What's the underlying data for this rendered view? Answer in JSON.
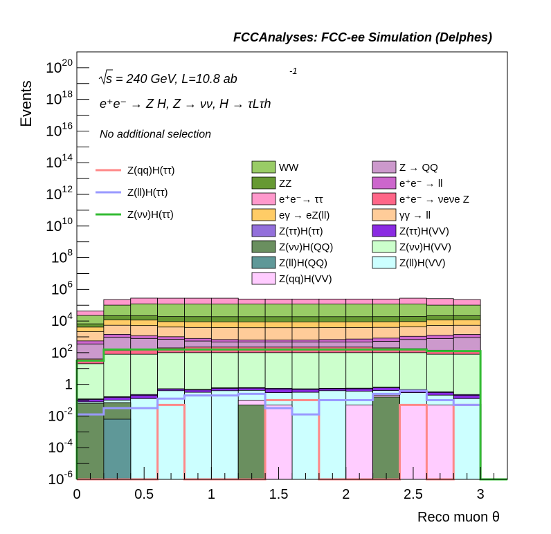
{
  "header": "FCCAnalyses: FCC-ee Simulation (Delphes)",
  "annotations": {
    "sqrt_s": "s = 240 GeV, L=10.8 ab",
    "lumi_exp": "-1",
    "process": "e⁺e⁻ → Z H, Z → νν, H → τLτh",
    "selection": "No additional selection"
  },
  "chart_data": {
    "type": "histogram-stacked",
    "xlabel": "Reco muon θ",
    "ylabel": "Events",
    "xlim": [
      0,
      3.2
    ],
    "ylim": [
      1e-06,
      1e+21
    ],
    "yscale": "log",
    "grid": false,
    "bin_edges": [
      0,
      0.2,
      0.4,
      0.6,
      0.8,
      1.0,
      1.2,
      1.4,
      1.6,
      1.8,
      2.0,
      2.2,
      2.4,
      2.6,
      2.8,
      3.0
    ],
    "x_ticks": [
      "0",
      "0.5",
      "1",
      "1.5",
      "2",
      "2.5",
      "3"
    ],
    "x_tick_values": [
      0,
      0.5,
      1,
      1.5,
      2,
      2.5,
      3
    ],
    "y_ticks": [
      {
        "value": 1e-06,
        "base": "10",
        "exp": "-6"
      },
      {
        "value": 0.0001,
        "base": "10",
        "exp": "-4"
      },
      {
        "value": 0.01,
        "base": "10",
        "exp": "-2"
      },
      {
        "value": 1,
        "base": "1",
        "exp": ""
      },
      {
        "value": 100.0,
        "base": "10",
        "exp": "2"
      },
      {
        "value": 10000.0,
        "base": "10",
        "exp": "4"
      },
      {
        "value": 1000000.0,
        "base": "10",
        "exp": "6"
      },
      {
        "value": 100000000.0,
        "base": "10",
        "exp": "8"
      },
      {
        "value": 10000000000.0,
        "base": "10",
        "exp": "10"
      },
      {
        "value": 1000000000000.0,
        "base": "10",
        "exp": "12"
      },
      {
        "value": 100000000000000.0,
        "base": "10",
        "exp": "14"
      },
      {
        "value": 1e+16,
        "base": "10",
        "exp": "16"
      },
      {
        "value": 1e+18,
        "base": "10",
        "exp": "18"
      },
      {
        "value": 1e+20,
        "base": "10",
        "exp": "20"
      }
    ],
    "stack_totals_log10": [
      [
        -6,
        -1.9,
        -1.8,
        -1.7,
        -1.6,
        -1.5
      ],
      [
        -1.2,
        -1.2,
        -1.0,
        -1.0,
        -0.9,
        -0.7
      ],
      [
        -1.2,
        -1.1,
        -0.9,
        -0.9,
        -0.8,
        -0.7
      ],
      [
        -1.0,
        -1.0,
        -0.8,
        -0.8,
        -0.7,
        -0.6
      ],
      [
        -6,
        -0.9,
        -0.7,
        -0.7,
        -0.6,
        -0.5
      ],
      [
        -6,
        -0.7,
        -0.6,
        -0.6,
        -0.5,
        -0.4
      ],
      [
        -6,
        -0.7,
        -0.6,
        -0.6,
        -0.5,
        -0.4
      ],
      [
        -6,
        -0.6,
        -0.5,
        -0.4,
        -0.3,
        -0.2
      ],
      [
        -6,
        -0.5,
        -0.4,
        -0.3,
        -0.2,
        -0.1
      ],
      [
        -6,
        -0.6,
        -0.5,
        -0.4,
        -0.3,
        -0.2
      ],
      [
        -6,
        -0.5,
        -0.4,
        -0.3,
        -0.2,
        -0.1
      ],
      [
        -6,
        -0.7,
        -0.6,
        -0.5,
        -0.4,
        -0.3
      ],
      [
        -6,
        -0.6,
        -0.5,
        -0.4,
        -0.3,
        -0.2
      ],
      [
        -6,
        -0.8,
        -0.7,
        -0.6,
        -0.5,
        -0.4
      ],
      [
        -6,
        -0.9,
        -0.8,
        -0.7,
        -0.6,
        -0.5
      ]
    ],
    "stack_order": [
      "Z(ll)H(QQ)",
      "Z(νν)H(QQ)",
      "Z(qq)H(VV)",
      "Z(ll)H(VV)",
      "Z(ττ)H(VV)",
      "Z(ττ)H(ττ)",
      "Z(νν)H(VV)",
      "e⁺e⁻ → νeνe Z",
      "Z → QQ",
      "e⁺e⁻ → ll",
      "γγ → ll",
      "eγ → eZ(ll)",
      "ZZ",
      "WW",
      "e⁺e⁻ → ττ"
    ],
    "stacked_series": [
      {
        "name": "Z(ll)H(QQ)",
        "color": "#5f9898",
        "log10": [
          -6,
          -2.2,
          -6,
          -6,
          -6,
          -6,
          -6,
          -6,
          -6,
          -6,
          -6,
          -6,
          -6,
          -6,
          -6
        ]
      },
      {
        "name": "Z(νν)H(QQ)",
        "color": "#6a8f5f",
        "log10": [
          -1.2,
          -1.2,
          -6,
          -6,
          -6,
          -6,
          -1.3,
          -6,
          -6,
          -6,
          -6,
          -0.8,
          -6,
          -6,
          -6
        ]
      },
      {
        "name": "Z(qq)H(VV)",
        "color": "#ffccff",
        "log10": [
          -6,
          -6,
          -6,
          -6,
          -6,
          -6,
          -1.3,
          -1.3,
          -6,
          -6,
          -1.3,
          -1.3,
          -1.3,
          -1.3,
          -6
        ]
      },
      {
        "name": "Z(ll)H(VV)",
        "color": "#ccffff",
        "log10": [
          -1.8,
          -1.5,
          -0.9,
          -0.4,
          -0.5,
          -0.4,
          -0.5,
          -0.6,
          -0.5,
          -0.4,
          -0.5,
          -0.7,
          -0.6,
          -0.8,
          -0.9
        ]
      },
      {
        "name": "Z(ττ)H(VV)",
        "color": "#8a2be2",
        "log10": [
          -1.5,
          -1.3,
          -1.1,
          -1.0,
          -0.9,
          -0.8,
          -0.8,
          -0.7,
          -0.8,
          -0.9,
          -0.8,
          -0.7,
          -0.9,
          -1.0,
          -1.1
        ]
      },
      {
        "name": "Z(ττ)H(ττ)",
        "color": "#9370db",
        "log10": [
          -2.0,
          -1.8,
          -1.6,
          -1.5,
          -1.4,
          -1.3,
          -1.3,
          -1.2,
          -1.3,
          -1.4,
          -1.3,
          -1.2,
          -1.4,
          -1.5,
          -1.6
        ]
      },
      {
        "name": "Z(νν)H(VV)",
        "color": "#ccffcc",
        "log10": [
          1.3,
          1.9,
          1.9,
          2.0,
          2.0,
          2.0,
          2.0,
          2.0,
          2.0,
          2.0,
          2.0,
          2.0,
          2.0,
          1.9,
          1.9
        ]
      },
      {
        "name": "e⁺e⁻ → νeνe Z",
        "color": "#ff6688",
        "log10": [
          1.3,
          1.8,
          1.9,
          2.0,
          2.1,
          2.1,
          2.1,
          2.1,
          2.1,
          2.1,
          2.1,
          2.0,
          1.9,
          1.8,
          1.6
        ]
      },
      {
        "name": "Z → QQ",
        "color": "#cc99cc",
        "log10": [
          2.5,
          2.9,
          2.8,
          2.7,
          2.5,
          2.4,
          2.4,
          2.4,
          2.4,
          2.4,
          2.4,
          2.5,
          2.7,
          2.8,
          2.9
        ]
      },
      {
        "name": "e⁺e⁻ → ll",
        "color": "#cc66cc",
        "log10": [
          2.3,
          2.7,
          2.6,
          2.5,
          2.4,
          2.3,
          2.2,
          2.2,
          2.2,
          2.3,
          2.4,
          2.5,
          2.6,
          2.7,
          2.7
        ]
      },
      {
        "name": "γγ → ll",
        "color": "#ffcc99",
        "log10": [
          3.2,
          3.6,
          3.6,
          3.5,
          3.5,
          3.5,
          3.5,
          3.5,
          3.5,
          3.5,
          3.5,
          3.5,
          3.5,
          3.6,
          3.6
        ]
      },
      {
        "name": "eγ → eZ(ll)",
        "color": "#ffcc66",
        "log10": [
          3.3,
          3.8,
          3.8,
          3.7,
          3.7,
          3.7,
          3.7,
          3.7,
          3.7,
          3.7,
          3.7,
          3.7,
          3.7,
          3.8,
          3.8
        ]
      },
      {
        "name": "ZZ",
        "color": "#669933",
        "log10": [
          3.4,
          4.0,
          4.0,
          4.0,
          4.0,
          4.0,
          4.0,
          4.0,
          4.0,
          4.0,
          4.0,
          4.0,
          4.0,
          4.0,
          4.0
        ]
      },
      {
        "name": "WW",
        "color": "#99cc66",
        "log10": [
          4.2,
          4.9,
          5.0,
          5.0,
          5.0,
          5.0,
          5.0,
          5.0,
          5.0,
          5.0,
          5.0,
          5.0,
          5.0,
          4.9,
          4.9
        ]
      },
      {
        "name": "e⁺e⁻ → ττ",
        "color": "#ff99cc",
        "log10": [
          4.3,
          5.1,
          5.2,
          5.2,
          5.2,
          5.2,
          5.1,
          5.1,
          5.1,
          5.1,
          5.1,
          5.1,
          5.2,
          5.2,
          5.1
        ]
      }
    ],
    "line_series": [
      {
        "name": "Z(qq)H(ττ)",
        "color": "#ff8888",
        "log10": [
          -6,
          -6,
          -6,
          -1.3,
          -6,
          -6,
          -6,
          -1.0,
          -1.0,
          -6,
          -6,
          -6,
          -1.3,
          -6,
          -1.3
        ]
      },
      {
        "name": "Z(ll)H(ττ)",
        "color": "#9999ff",
        "log10": [
          -1.9,
          -1.5,
          -1.5,
          -0.9,
          -0.7,
          -0.7,
          -0.6,
          -1.5,
          -1.9,
          -1.0,
          -1.0,
          -0.6,
          -0.4,
          -1.0,
          -1.3
        ]
      },
      {
        "name": "Z(νν)H(ττ)",
        "color": "#33bb33",
        "log10": [
          1.5,
          2.2,
          2.2,
          2.2,
          2.2,
          2.2,
          2.2,
          2.2,
          2.2,
          2.2,
          2.2,
          2.2,
          2.2,
          2.1,
          2.1
        ]
      }
    ],
    "legend_left": [
      "Z(qq)H(ττ)",
      "Z(ll)H(ττ)",
      "Z(νν)H(ττ)"
    ],
    "legend_mid": [
      "WW",
      "ZZ",
      "e⁺e⁻→ ττ",
      "eγ → eZ(ll)",
      "Z(ττ)H(ττ)",
      "Z(νν)H(QQ)",
      "Z(ll)H(QQ)",
      "Z(qq)H(VV)"
    ],
    "legend_mid_colors": [
      "#99cc66",
      "#669933",
      "#ff99cc",
      "#ffcc66",
      "#9370db",
      "#6a8f5f",
      "#5f9898",
      "#ffccff"
    ],
    "legend_right": [
      "Z → QQ",
      "e⁺e⁻ → ll",
      "e⁺e⁻ → νeνe Z",
      "γγ → ll",
      "Z(ττ)H(VV)",
      "Z(νν)H(VV)",
      "Z(ll)H(VV)"
    ],
    "legend_right_colors": [
      "#cc99cc",
      "#cc66cc",
      "#ff6688",
      "#ffcc99",
      "#8a2be2",
      "#ccffcc",
      "#ccffff"
    ]
  }
}
